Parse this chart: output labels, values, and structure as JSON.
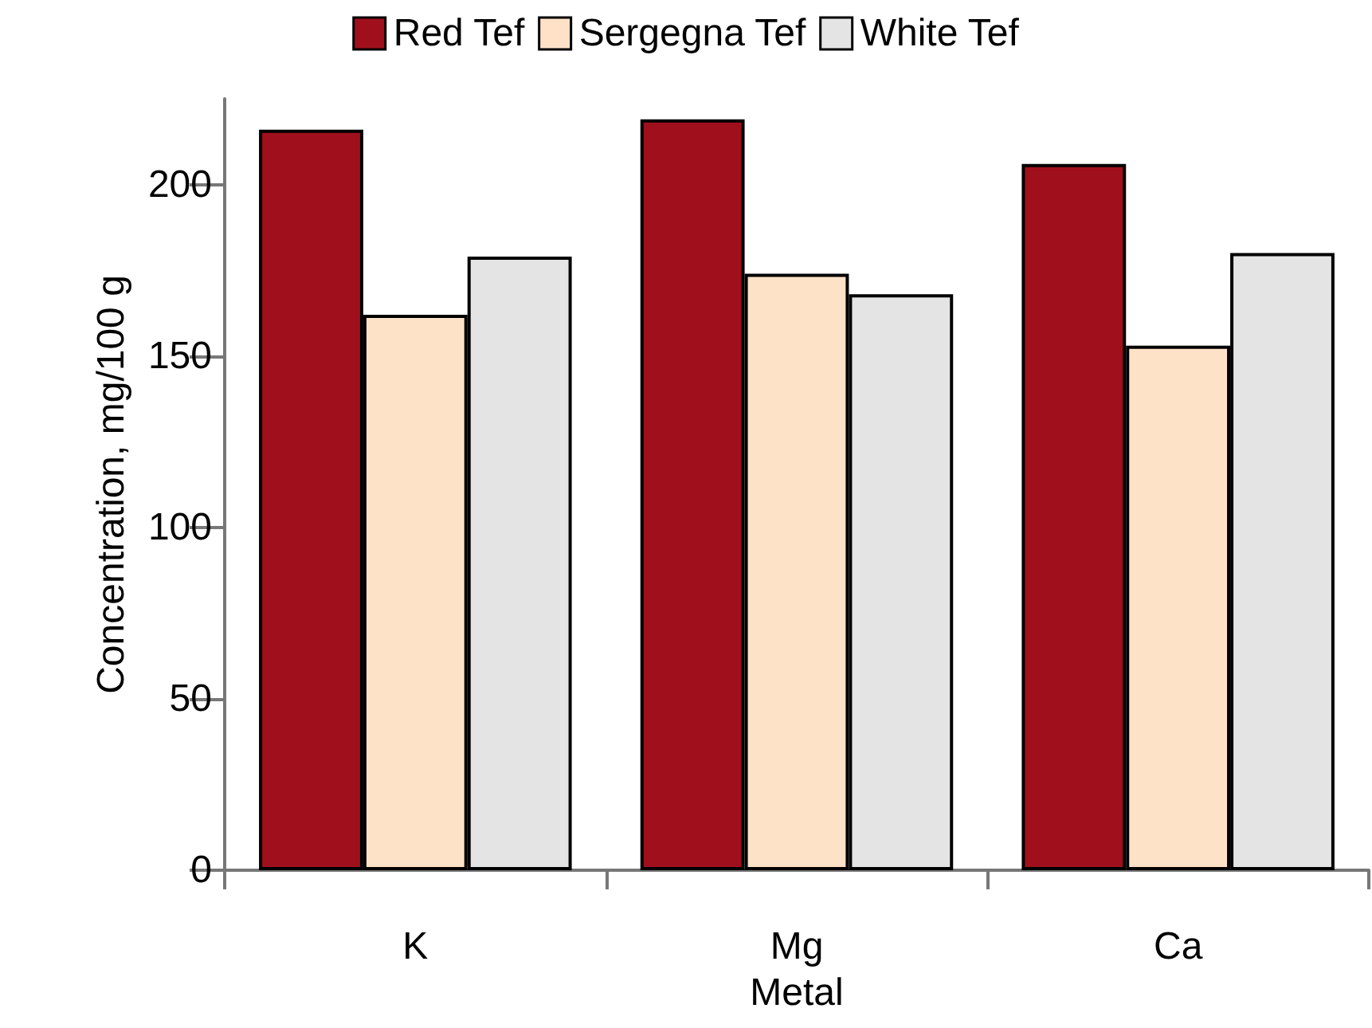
{
  "chart_data": {
    "type": "bar",
    "xlabel": "Metal",
    "ylabel": "Concentration, mg/100 g",
    "categories": [
      "K",
      "Mg",
      "Ca"
    ],
    "series": [
      {
        "name": "Red Tef",
        "color": "#a0101c",
        "values": [
          216,
          219,
          206
        ]
      },
      {
        "name": "Sergegna Tef",
        "color": "#fde2c8",
        "values": [
          162,
          174,
          153
        ]
      },
      {
        "name": "White Tef",
        "color": "#e4e4e4",
        "values": [
          179,
          168,
          180
        ]
      }
    ],
    "ylim": [
      0,
      225
    ],
    "yticks": [
      0,
      50,
      100,
      150,
      200
    ],
    "grid": false,
    "legend": "top"
  }
}
